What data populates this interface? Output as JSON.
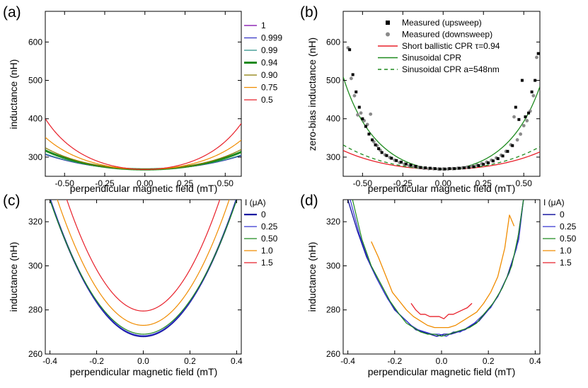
{
  "chart_data": [
    {
      "id": "a",
      "panel_label": "(a)",
      "type": "line",
      "xlabel": "perpendicular magnetic field (mT)",
      "ylabel": "inductance (nH)",
      "xlim": [
        -0.62,
        0.6
      ],
      "ylim": [
        250,
        680
      ],
      "xticks": [
        -0.5,
        -0.25,
        0.0,
        0.25,
        0.5
      ],
      "xtick_labels": [
        "-0.50",
        "-0.25",
        "0.00",
        "0.25",
        "0.50"
      ],
      "yticks": [
        300,
        400,
        500,
        600
      ],
      "ytick_labels": [
        "300",
        "400",
        "500",
        "600"
      ],
      "legend_title": "",
      "legend_position": "right-outside",
      "series": [
        {
          "name": "1",
          "color": "#7a00a8",
          "width": 1.2,
          "model": "ballistic",
          "tau": 1.0
        },
        {
          "name": "0.999",
          "color": "#3434c4",
          "width": 1.2,
          "model": "ballistic",
          "tau": 0.999
        },
        {
          "name": "0.99",
          "color": "#2b8f86",
          "width": 1.2,
          "model": "ballistic",
          "tau": 0.99
        },
        {
          "name": "0.94",
          "color": "#1e8a1e",
          "width": 3.0,
          "model": "ballistic",
          "tau": 0.94
        },
        {
          "name": "0.90",
          "color": "#8a7a00",
          "width": 1.2,
          "model": "ballistic",
          "tau": 0.9
        },
        {
          "name": "0.75",
          "color": "#f08c00",
          "width": 1.2,
          "model": "ballistic",
          "tau": 0.75
        },
        {
          "name": "0.5",
          "color": "#e8202a",
          "width": 1.2,
          "model": "ballistic",
          "tau": 0.5
        }
      ],
      "model_params": {
        "L0": 268,
        "phase_per_mT": 1.64
      }
    },
    {
      "id": "b",
      "panel_label": "(b)",
      "type": "scatter+line",
      "xlabel": "perpendicular magnetic field (mT)",
      "ylabel": "zero-bias inductance (nH)",
      "xlim": [
        -0.62,
        0.6
      ],
      "ylim": [
        250,
        680
      ],
      "xticks": [
        -0.5,
        -0.25,
        0.0,
        0.25,
        0.5
      ],
      "xtick_labels": [
        "-0.50",
        "-0.25",
        "0.00",
        "0.25",
        "0.50"
      ],
      "yticks": [
        300,
        400,
        500,
        600
      ],
      "ytick_labels": [
        "300",
        "400",
        "500",
        "600"
      ],
      "legend_position": "top-inside",
      "legend": [
        {
          "label": "Measured (upsweep)",
          "kind": "square",
          "color": "#000000"
        },
        {
          "label": "Measured (downsweep)",
          "kind": "circle",
          "color": "#8a8a8a"
        },
        {
          "label": "Short ballistic CPR τ=0.94",
          "kind": "line",
          "color": "#e8202a"
        },
        {
          "label": "Sinusoidal CPR",
          "kind": "line",
          "color": "#1e8a1e"
        },
        {
          "label": "Sinusoidal CPR a=548nm",
          "kind": "dash",
          "color": "#1e8a1e"
        }
      ],
      "series": [
        {
          "name": "Short ballistic CPR τ=0.94",
          "color": "#e8202a",
          "width": 1.3,
          "model": "ballistic",
          "tau": 0.94
        },
        {
          "name": "Sinusoidal CPR",
          "color": "#1e8a1e",
          "width": 1.3,
          "model": "sin",
          "scale": 1.0
        },
        {
          "name": "Sinusoidal CPR a=548nm",
          "color": "#1e8a1e",
          "width": 1.3,
          "dash": "5,4",
          "model": "sin",
          "scale": 0.62
        }
      ],
      "model_params": {
        "L0": 268,
        "phase_per_mT": 1.64
      },
      "upsweep_x": [
        -0.58,
        -0.56,
        -0.54,
        -0.52,
        -0.5,
        -0.48,
        -0.46,
        -0.44,
        -0.42,
        -0.4,
        -0.38,
        -0.35,
        -0.32,
        -0.29,
        -0.26,
        -0.23,
        -0.2,
        -0.17,
        -0.14,
        -0.11,
        -0.08,
        -0.05,
        -0.02,
        0.01,
        0.04,
        0.07,
        0.1,
        0.13,
        0.16,
        0.19,
        0.22,
        0.25,
        0.28,
        0.31,
        0.34,
        0.37,
        0.4,
        0.43,
        0.45,
        0.47,
        0.49,
        0.51,
        0.53,
        0.55,
        0.57,
        0.59
      ],
      "upsweep_y": [
        580,
        515,
        470,
        430,
        400,
        380,
        360,
        345,
        332,
        322,
        312,
        304,
        297,
        291,
        287,
        282,
        279,
        276,
        273,
        272,
        271,
        270,
        269,
        269,
        270,
        270,
        271,
        272,
        273,
        275,
        278,
        281,
        285,
        290,
        296,
        303,
        315,
        330,
        430,
        398,
        500,
        405,
        415,
        470,
        500,
        570
      ],
      "downsweep_x": [
        -0.59,
        -0.57,
        -0.55,
        -0.53,
        -0.51,
        -0.49,
        -0.47,
        -0.45,
        -0.43,
        -0.41,
        -0.39,
        -0.36,
        -0.33,
        -0.3,
        -0.27,
        -0.24,
        -0.21,
        -0.18,
        -0.15,
        -0.12,
        -0.09,
        -0.06,
        -0.03,
        0.0,
        0.03,
        0.06,
        0.09,
        0.12,
        0.15,
        0.18,
        0.21,
        0.24,
        0.27,
        0.3,
        0.33,
        0.36,
        0.39,
        0.42,
        0.44,
        0.46,
        0.48,
        0.5,
        0.52,
        0.54,
        0.56,
        0.58
      ],
      "downsweep_y": [
        585,
        505,
        460,
        410,
        415,
        395,
        385,
        412,
        340,
        330,
        318,
        306,
        299,
        292,
        286,
        282,
        278,
        275,
        273,
        271,
        270,
        270,
        269,
        269,
        269,
        270,
        271,
        272,
        274,
        276,
        279,
        283,
        287,
        292,
        298,
        305,
        315,
        332,
        405,
        345,
        360,
        382,
        395,
        420,
        460,
        560
      ]
    },
    {
      "id": "c",
      "panel_label": "(c)",
      "type": "line",
      "xlabel": "perpendicular magnetic field (mT)",
      "ylabel": "inductance (nH)",
      "xlim": [
        -0.42,
        0.42
      ],
      "ylim": [
        260,
        330
      ],
      "xticks": [
        -0.4,
        -0.2,
        0.0,
        0.2,
        0.4
      ],
      "xtick_labels": [
        "-0.4",
        "-0.2",
        "0.0",
        "0.2",
        "0.4"
      ],
      "yticks": [
        260,
        280,
        300,
        320
      ],
      "ytick_labels": [
        "260",
        "280",
        "300",
        "320"
      ],
      "legend_title": "I (μA)",
      "legend_position": "right-outside",
      "series": [
        {
          "name": "0",
          "color": "#1a1aa0",
          "width": 2.2,
          "model": "quad",
          "L0": 268.0,
          "k": 390
        },
        {
          "name": "0.25",
          "color": "#3434d0",
          "width": 1.2,
          "model": "quad",
          "L0": 268.3,
          "k": 388
        },
        {
          "name": "0.50",
          "color": "#1e8a1e",
          "width": 1.2,
          "model": "quad",
          "L0": 269.0,
          "k": 380
        },
        {
          "name": "1.0",
          "color": "#f08c00",
          "width": 1.2,
          "model": "quad",
          "L0": 273.0,
          "k": 420
        },
        {
          "name": "1.5",
          "color": "#e8202a",
          "width": 1.2,
          "model": "quad",
          "L0": 279.5,
          "k": 470
        }
      ]
    },
    {
      "id": "d",
      "panel_label": "(d)",
      "type": "line",
      "xlabel": "perpendicular magnetic field (mT)",
      "ylabel": "inductance (nH)",
      "xlim": [
        -0.42,
        0.42
      ],
      "ylim": [
        260,
        330
      ],
      "xticks": [
        -0.4,
        -0.2,
        0.0,
        0.2,
        0.4
      ],
      "xtick_labels": [
        "-0.4",
        "-0.2",
        "0.0",
        "0.2",
        "0.4"
      ],
      "yticks": [
        260,
        280,
        300,
        320
      ],
      "ytick_labels": [
        "260",
        "280",
        "300",
        "320"
      ],
      "legend_title": "I (μA)",
      "legend_position": "right-outside",
      "series": [
        {
          "name": "0",
          "color": "#1a1aa0",
          "width": 1.4,
          "x": [
            -0.4,
            -0.36,
            -0.32,
            -0.28,
            -0.24,
            -0.2,
            -0.17,
            -0.14,
            -0.11,
            -0.08,
            -0.05,
            -0.02,
            0.01,
            0.04,
            0.07,
            0.1,
            0.13,
            0.16,
            0.2,
            0.24,
            0.28,
            0.32,
            0.35
          ],
          "y": [
            330,
            316,
            304,
            295,
            287,
            280,
            277,
            274,
            271,
            270,
            269,
            268,
            269,
            269,
            270,
            271,
            273,
            275,
            280,
            286,
            295,
            308,
            330
          ]
        },
        {
          "name": "0.25",
          "color": "#3434d0",
          "width": 1.2,
          "x": [
            -0.39,
            -0.35,
            -0.31,
            -0.27,
            -0.23,
            -0.19,
            -0.16,
            -0.13,
            -0.1,
            -0.07,
            -0.04,
            -0.01,
            0.02,
            0.05,
            0.08,
            0.11,
            0.14,
            0.17,
            0.21,
            0.25,
            0.29,
            0.33,
            0.35
          ],
          "y": [
            330,
            314,
            302,
            293,
            285,
            279,
            276,
            273,
            271,
            270,
            269,
            269,
            268,
            270,
            270,
            272,
            274,
            277,
            281,
            288,
            297,
            312,
            330
          ]
        },
        {
          "name": "0.50",
          "color": "#1e8a1e",
          "width": 1.2,
          "x": [
            -0.38,
            -0.34,
            -0.3,
            -0.26,
            -0.22,
            -0.18,
            -0.15,
            -0.12,
            -0.09,
            -0.06,
            -0.03,
            0.0,
            0.03,
            0.06,
            0.09,
            0.12,
            0.15,
            0.18,
            0.22,
            0.26,
            0.3,
            0.33,
            0.35
          ],
          "y": [
            330,
            312,
            300,
            292,
            284,
            278,
            274,
            272,
            270,
            269,
            269,
            268,
            269,
            270,
            271,
            272,
            274,
            278,
            283,
            290,
            300,
            315,
            330
          ]
        },
        {
          "name": "1.0",
          "color": "#f08c00",
          "width": 1.3,
          "x": [
            -0.3,
            -0.27,
            -0.24,
            -0.21,
            -0.18,
            -0.15,
            -0.12,
            -0.09,
            -0.06,
            -0.03,
            0.0,
            0.03,
            0.06,
            0.09,
            0.12,
            0.15,
            0.18,
            0.21,
            0.24,
            0.27,
            0.29,
            0.31
          ],
          "y": [
            311,
            304,
            296,
            288,
            284,
            280,
            277,
            275,
            273,
            272,
            272,
            272,
            273,
            275,
            277,
            279,
            283,
            288,
            295,
            308,
            323,
            318
          ]
        },
        {
          "name": "1.5",
          "color": "#e8202a",
          "width": 1.3,
          "x": [
            -0.13,
            -0.11,
            -0.09,
            -0.07,
            -0.05,
            -0.03,
            -0.01,
            0.01,
            0.03,
            0.05,
            0.07,
            0.09,
            0.11,
            0.13
          ],
          "y": [
            283,
            280,
            278,
            278,
            277,
            277,
            277,
            276,
            278,
            278,
            279,
            280,
            281,
            283
          ]
        }
      ]
    }
  ]
}
